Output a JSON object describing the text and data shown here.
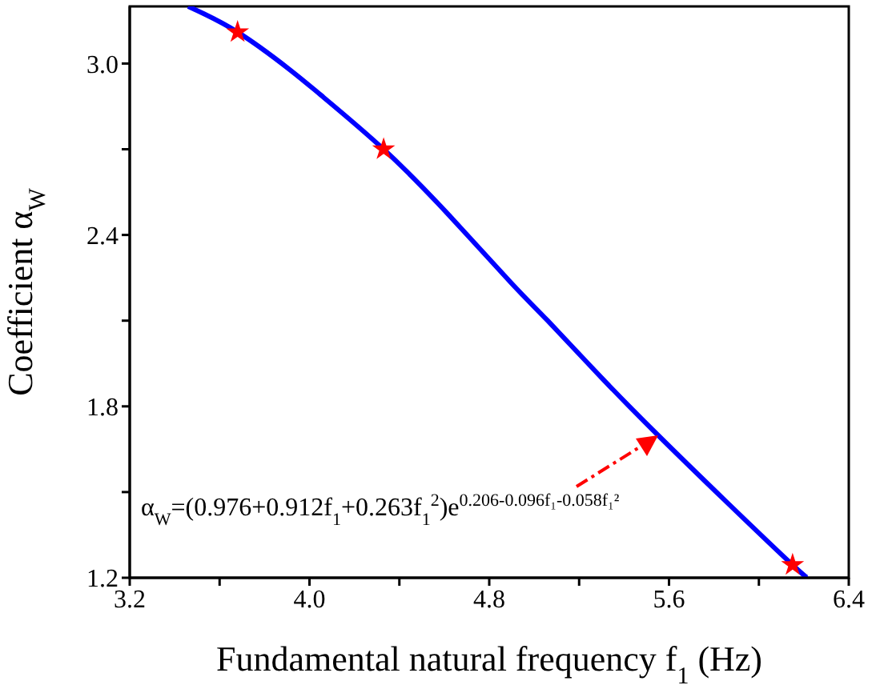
{
  "chart_data": {
    "type": "line",
    "xlabel": "Fundamental natural frequency f$_{1}$ (Hz)",
    "ylabel": "Coefficient α$_{W}$",
    "xlim": [
      3.2,
      6.4
    ],
    "xticks": [
      3.2,
      {
        "value": 3.6,
        "label": null
      },
      {
        "value": 4.0,
        "label": "4.0"
      },
      {
        "value": 4.4,
        "label": null
      },
      4.8,
      {
        "value": 5.2,
        "label": null
      },
      5.6,
      {
        "value": 6.0,
        "label": null
      },
      6.4
    ],
    "ylim": [
      1.2,
      3.2
    ],
    "yticks": [
      1.2,
      {
        "value": 1.5,
        "label": null
      },
      1.8,
      {
        "value": 2.1,
        "label": null
      },
      2.4,
      {
        "value": 2.7,
        "label": null
      },
      {
        "value": 3.0,
        "label": "3.0"
      }
    ],
    "series": [
      {
        "color": "#0000ff",
        "marker": "none",
        "x": [
          3.46,
          3.68,
          3.91,
          4.05,
          4.33,
          4.62,
          4.9,
          5.06,
          5.3,
          5.55,
          5.85,
          6.15,
          6.22
        ],
        "values": [
          3.2,
          3.11,
          2.98,
          2.89,
          2.7,
          2.47,
          2.23,
          2.1,
          1.9,
          1.7,
          1.47,
          1.245,
          1.2
        ]
      },
      {
        "type": "scatter",
        "color": "#ff0000",
        "marker": "star",
        "x": [
          3.68,
          4.33,
          6.15
        ],
        "values": [
          3.11,
          2.7,
          1.245
        ]
      }
    ],
    "annotations": [
      "α$_{W}$=(0.976+0.912f$_{1}$+0.263f$_{1}$$^{2}$)e$^{0.206-0.096f₁-0.058f₁²}$"
    ],
    "grid": false
  }
}
